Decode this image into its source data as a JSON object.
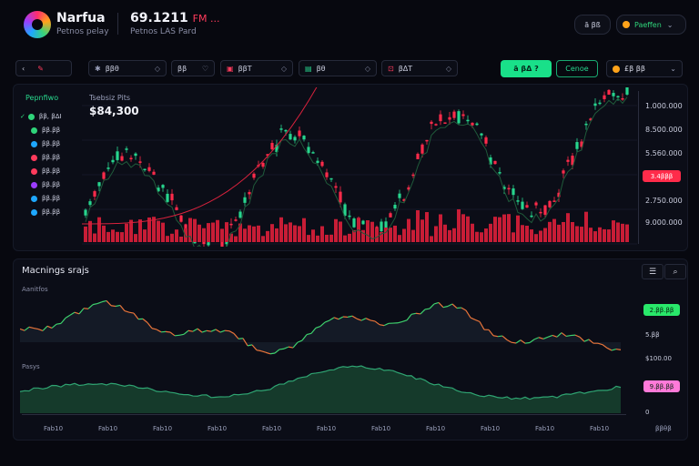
{
  "header": {
    "brand": "Narfua",
    "brand_sub": "Petnos pelay",
    "price": "69.1211",
    "price_change": "FM ...",
    "price_sub": "Petnos LAS Pard",
    "btn1": "ā βß",
    "btn2": "Paeffen"
  },
  "toolbar": {
    "items": [
      {
        "label": "ββθ"
      },
      {
        "label": "ββ"
      },
      {
        "label": "ββΤ"
      },
      {
        "label": "βθ"
      },
      {
        "label": "βΔΤ"
      }
    ],
    "primary_label": "ā βΔ ?",
    "secondary_label": "Cenoe",
    "balance": "£β ββ"
  },
  "watchlist": {
    "title": "Pepnfiwo",
    "items": [
      {
        "label": "ββ, βΔI",
        "color": "#2fd47a"
      },
      {
        "label": "ββ.ββ",
        "color": "#2fd47a"
      },
      {
        "label": "ββ.ββ",
        "color": "#1ea7ff"
      },
      {
        "label": "ββ.ββ",
        "color": "#ff3b5c"
      },
      {
        "label": "ββ.ββ",
        "color": "#ff3b5c"
      },
      {
        "label": "ββ.ββ",
        "color": "#9b3cff"
      },
      {
        "label": "ββ.ββ",
        "color": "#1ea7ff"
      },
      {
        "label": "ββ.ββ",
        "color": "#1ea7ff"
      }
    ]
  },
  "main_chart": {
    "title": "Tsebsiz Pits",
    "price": "$84,300",
    "y_ticks": [
      "1.000.000",
      "8.500.000",
      "5.560.000",
      "2.750.000",
      "9.000.000"
    ],
    "y_badge": "3.4βββ",
    "colors": {
      "up": "#27d58e",
      "down": "#ff2b4a",
      "ma": "#d8223d"
    }
  },
  "lower": {
    "title": "Macnings srajs",
    "label1": "Aanitfos",
    "label2": "Pasys",
    "badge1": "2.ββ.ββ",
    "badge1_color": "#29e86a",
    "val1": "5.ββ",
    "val2": "$100.00",
    "badge2": "9.ββ.ββ",
    "badge2_color": "#ff7ad9",
    "zero": "0",
    "x_ticks": [
      "Fab10",
      "Fab10",
      "Fab10",
      "Fab10",
      "Fab10",
      "Fab10",
      "Fab10",
      "Fab10",
      "Fab10",
      "Fab10",
      "Fab10"
    ],
    "x_last": "ββθβ"
  }
}
